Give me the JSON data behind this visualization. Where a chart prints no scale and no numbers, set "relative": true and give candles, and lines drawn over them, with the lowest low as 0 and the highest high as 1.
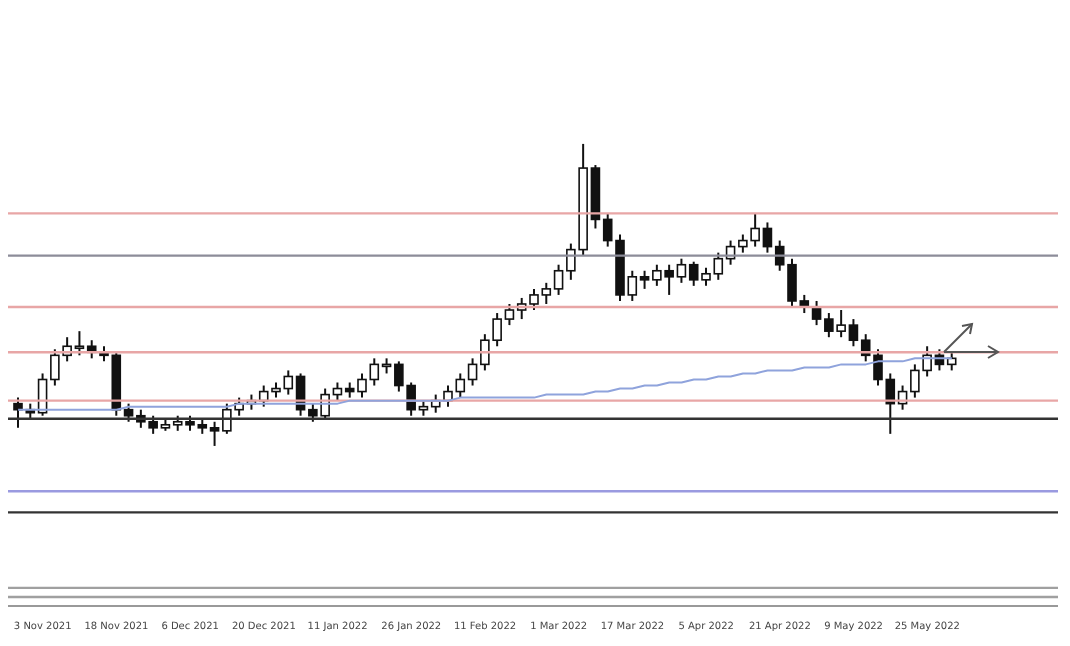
{
  "chart_data": {
    "type": "candlestick",
    "relative": true,
    "categories": [
      null,
      null,
      "3 Nov 2021",
      null,
      null,
      null,
      null,
      null,
      "18 Nov 2021",
      null,
      null,
      null,
      null,
      null,
      "6 Dec 2021",
      null,
      null,
      null,
      null,
      null,
      "20 Dec 2021",
      null,
      null,
      null,
      null,
      null,
      "11 Jan 2022",
      null,
      null,
      null,
      null,
      null,
      "26 Jan 2022",
      null,
      null,
      null,
      null,
      null,
      "11 Feb 2022",
      null,
      null,
      null,
      null,
      null,
      "1 Mar 2022",
      null,
      null,
      null,
      null,
      null,
      "17 Mar 2022",
      null,
      null,
      null,
      null,
      null,
      "5 Apr 2022",
      null,
      null,
      null,
      null,
      null,
      "21 Apr 2022",
      null,
      null,
      null,
      null,
      null,
      "9 May 2022",
      null,
      null,
      null,
      null,
      null,
      "25 May 2022",
      null,
      null
    ],
    "ohlc": [
      [
        0.14,
        0.16,
        0.06,
        0.12
      ],
      [
        0.12,
        0.14,
        0.09,
        0.11
      ],
      [
        0.11,
        0.24,
        0.1,
        0.22
      ],
      [
        0.22,
        0.32,
        0.2,
        0.3
      ],
      [
        0.3,
        0.36,
        0.28,
        0.33
      ],
      [
        0.33,
        0.38,
        0.3,
        0.33
      ],
      [
        0.33,
        0.35,
        0.29,
        0.31
      ],
      [
        0.31,
        0.33,
        0.28,
        0.3
      ],
      [
        0.3,
        0.31,
        0.1,
        0.12
      ],
      [
        0.12,
        0.14,
        0.08,
        0.1
      ],
      [
        0.1,
        0.12,
        0.06,
        0.08
      ],
      [
        0.08,
        0.1,
        0.04,
        0.06
      ],
      [
        0.06,
        0.09,
        0.05,
        0.07
      ],
      [
        0.07,
        0.1,
        0.05,
        0.08
      ],
      [
        0.08,
        0.1,
        0.05,
        0.07
      ],
      [
        0.07,
        0.09,
        0.04,
        0.06
      ],
      [
        0.06,
        0.08,
        0.0,
        0.05
      ],
      [
        0.05,
        0.14,
        0.04,
        0.12
      ],
      [
        0.12,
        0.16,
        0.1,
        0.14
      ],
      [
        0.14,
        0.17,
        0.12,
        0.15
      ],
      [
        0.15,
        0.2,
        0.13,
        0.18
      ],
      [
        0.18,
        0.21,
        0.16,
        0.19
      ],
      [
        0.19,
        0.25,
        0.17,
        0.23
      ],
      [
        0.23,
        0.24,
        0.1,
        0.12
      ],
      [
        0.12,
        0.14,
        0.08,
        0.1
      ],
      [
        0.1,
        0.19,
        0.09,
        0.17
      ],
      [
        0.17,
        0.21,
        0.15,
        0.19
      ],
      [
        0.19,
        0.21,
        0.16,
        0.18
      ],
      [
        0.18,
        0.24,
        0.16,
        0.22
      ],
      [
        0.22,
        0.29,
        0.2,
        0.27
      ],
      [
        0.27,
        0.29,
        0.24,
        0.27
      ],
      [
        0.27,
        0.28,
        0.18,
        0.2
      ],
      [
        0.2,
        0.21,
        0.1,
        0.12
      ],
      [
        0.12,
        0.15,
        0.1,
        0.13
      ],
      [
        0.13,
        0.17,
        0.11,
        0.15
      ],
      [
        0.15,
        0.2,
        0.13,
        0.18
      ],
      [
        0.18,
        0.24,
        0.16,
        0.22
      ],
      [
        0.22,
        0.29,
        0.2,
        0.27
      ],
      [
        0.27,
        0.37,
        0.25,
        0.35
      ],
      [
        0.35,
        0.44,
        0.33,
        0.42
      ],
      [
        0.42,
        0.47,
        0.4,
        0.45
      ],
      [
        0.45,
        0.49,
        0.42,
        0.47
      ],
      [
        0.47,
        0.52,
        0.45,
        0.5
      ],
      [
        0.5,
        0.54,
        0.47,
        0.52
      ],
      [
        0.52,
        0.6,
        0.5,
        0.58
      ],
      [
        0.58,
        0.67,
        0.55,
        0.65
      ],
      [
        0.65,
        1.0,
        0.63,
        0.92
      ],
      [
        0.92,
        0.93,
        0.72,
        0.75
      ],
      [
        0.75,
        0.77,
        0.66,
        0.68
      ],
      [
        0.68,
        0.7,
        0.48,
        0.5
      ],
      [
        0.5,
        0.58,
        0.48,
        0.56
      ],
      [
        0.56,
        0.58,
        0.52,
        0.55
      ],
      [
        0.55,
        0.6,
        0.53,
        0.58
      ],
      [
        0.58,
        0.6,
        0.5,
        0.56
      ],
      [
        0.56,
        0.62,
        0.54,
        0.6
      ],
      [
        0.6,
        0.61,
        0.53,
        0.55
      ],
      [
        0.55,
        0.59,
        0.53,
        0.57
      ],
      [
        0.57,
        0.64,
        0.55,
        0.62
      ],
      [
        0.62,
        0.68,
        0.6,
        0.66
      ],
      [
        0.66,
        0.7,
        0.64,
        0.68
      ],
      [
        0.68,
        0.77,
        0.66,
        0.72
      ],
      [
        0.72,
        0.74,
        0.64,
        0.66
      ],
      [
        0.66,
        0.68,
        0.58,
        0.6
      ],
      [
        0.6,
        0.62,
        0.46,
        0.48
      ],
      [
        0.48,
        0.5,
        0.44,
        0.46
      ],
      [
        0.46,
        0.48,
        0.4,
        0.42
      ],
      [
        0.42,
        0.44,
        0.36,
        0.38
      ],
      [
        0.38,
        0.45,
        0.36,
        0.4
      ],
      [
        0.4,
        0.42,
        0.33,
        0.35
      ],
      [
        0.35,
        0.37,
        0.28,
        0.3
      ],
      [
        0.3,
        0.32,
        0.2,
        0.22
      ],
      [
        0.22,
        0.24,
        0.04,
        0.14
      ],
      [
        0.14,
        0.2,
        0.12,
        0.18
      ],
      [
        0.18,
        0.27,
        0.16,
        0.25
      ],
      [
        0.25,
        0.33,
        0.23,
        0.3
      ],
      [
        0.3,
        0.32,
        0.25,
        0.27
      ],
      [
        0.27,
        0.31,
        0.25,
        0.29
      ]
    ],
    "series": [
      {
        "type": "line",
        "color": "#8fa3dc",
        "values": [
          0.12,
          0.12,
          0.12,
          0.12,
          0.12,
          0.12,
          0.12,
          0.12,
          0.12,
          0.13,
          0.13,
          0.13,
          0.13,
          0.13,
          0.13,
          0.13,
          0.13,
          0.13,
          0.14,
          0.14,
          0.14,
          0.14,
          0.14,
          0.14,
          0.14,
          0.14,
          0.14,
          0.15,
          0.15,
          0.15,
          0.15,
          0.15,
          0.15,
          0.15,
          0.15,
          0.15,
          0.16,
          0.16,
          0.16,
          0.16,
          0.16,
          0.16,
          0.16,
          0.17,
          0.17,
          0.17,
          0.17,
          0.18,
          0.18,
          0.19,
          0.19,
          0.2,
          0.2,
          0.21,
          0.21,
          0.22,
          0.22,
          0.23,
          0.23,
          0.24,
          0.24,
          0.25,
          0.25,
          0.25,
          0.26,
          0.26,
          0.26,
          0.27,
          0.27,
          0.27,
          0.28,
          0.28,
          0.28,
          0.29,
          0.29,
          0.29,
          0.29
        ]
      }
    ],
    "ref_lines": [
      {
        "axis": "y",
        "value": 0.77,
        "color": "#e8a6a6"
      },
      {
        "axis": "y",
        "value": 0.63,
        "color": "#8c8c99"
      },
      {
        "axis": "y",
        "value": 0.46,
        "color": "#e8a6a6"
      },
      {
        "axis": "y",
        "value": 0.31,
        "color": "#e8a6a6"
      },
      {
        "axis": "y",
        "value": 0.15,
        "color": "#e8a6a6"
      },
      {
        "axis": "y",
        "value": 0.09,
        "color": "#333333"
      },
      {
        "axis": "y",
        "value": -0.15,
        "color": "#9a9ae0"
      },
      {
        "axis": "y",
        "value": -0.22,
        "color": "#333333"
      },
      {
        "axis": "y",
        "value": -0.47,
        "color": "#a0a0a0"
      },
      {
        "axis": "y",
        "value": -0.5,
        "color": "#a0a0a0"
      }
    ]
  }
}
